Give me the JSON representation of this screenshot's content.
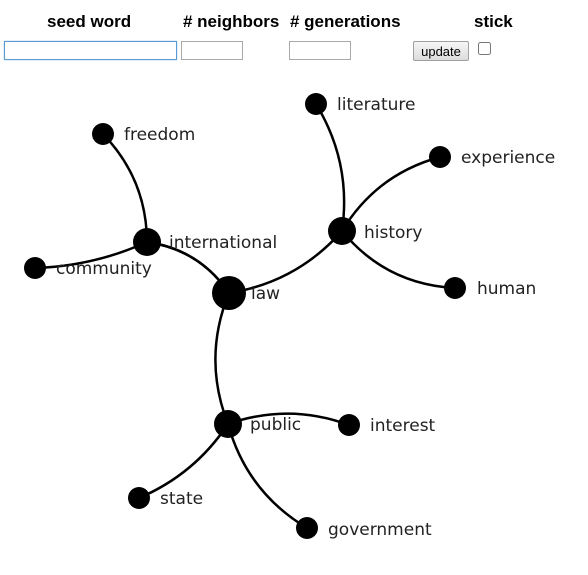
{
  "controls": {
    "seed_label": "seed word",
    "neighbors_label": "# neighbors",
    "generations_label": "# generations",
    "stick_label": "stick",
    "seed_value": "",
    "neighbors_value": "",
    "generations_value": "",
    "update_label": "update",
    "stick_checked": false
  },
  "graph": {
    "nodes": [
      {
        "id": "law",
        "label": "law"
      },
      {
        "id": "international",
        "label": "international"
      },
      {
        "id": "freedom",
        "label": "freedom"
      },
      {
        "id": "community",
        "label": "community"
      },
      {
        "id": "history",
        "label": "history"
      },
      {
        "id": "literature",
        "label": "literature"
      },
      {
        "id": "experience",
        "label": "experience"
      },
      {
        "id": "human",
        "label": "human"
      },
      {
        "id": "public",
        "label": "public"
      },
      {
        "id": "interest",
        "label": "interest"
      },
      {
        "id": "state",
        "label": "state"
      },
      {
        "id": "government",
        "label": "government"
      }
    ],
    "edges": [
      [
        "law",
        "international"
      ],
      [
        "international",
        "law"
      ],
      [
        "law",
        "history"
      ],
      [
        "law",
        "public"
      ],
      [
        "international",
        "freedom"
      ],
      [
        "international",
        "community"
      ],
      [
        "history",
        "literature"
      ],
      [
        "history",
        "experience"
      ],
      [
        "history",
        "human"
      ],
      [
        "public",
        "interest"
      ],
      [
        "public",
        "state"
      ],
      [
        "public",
        "government"
      ]
    ]
  }
}
